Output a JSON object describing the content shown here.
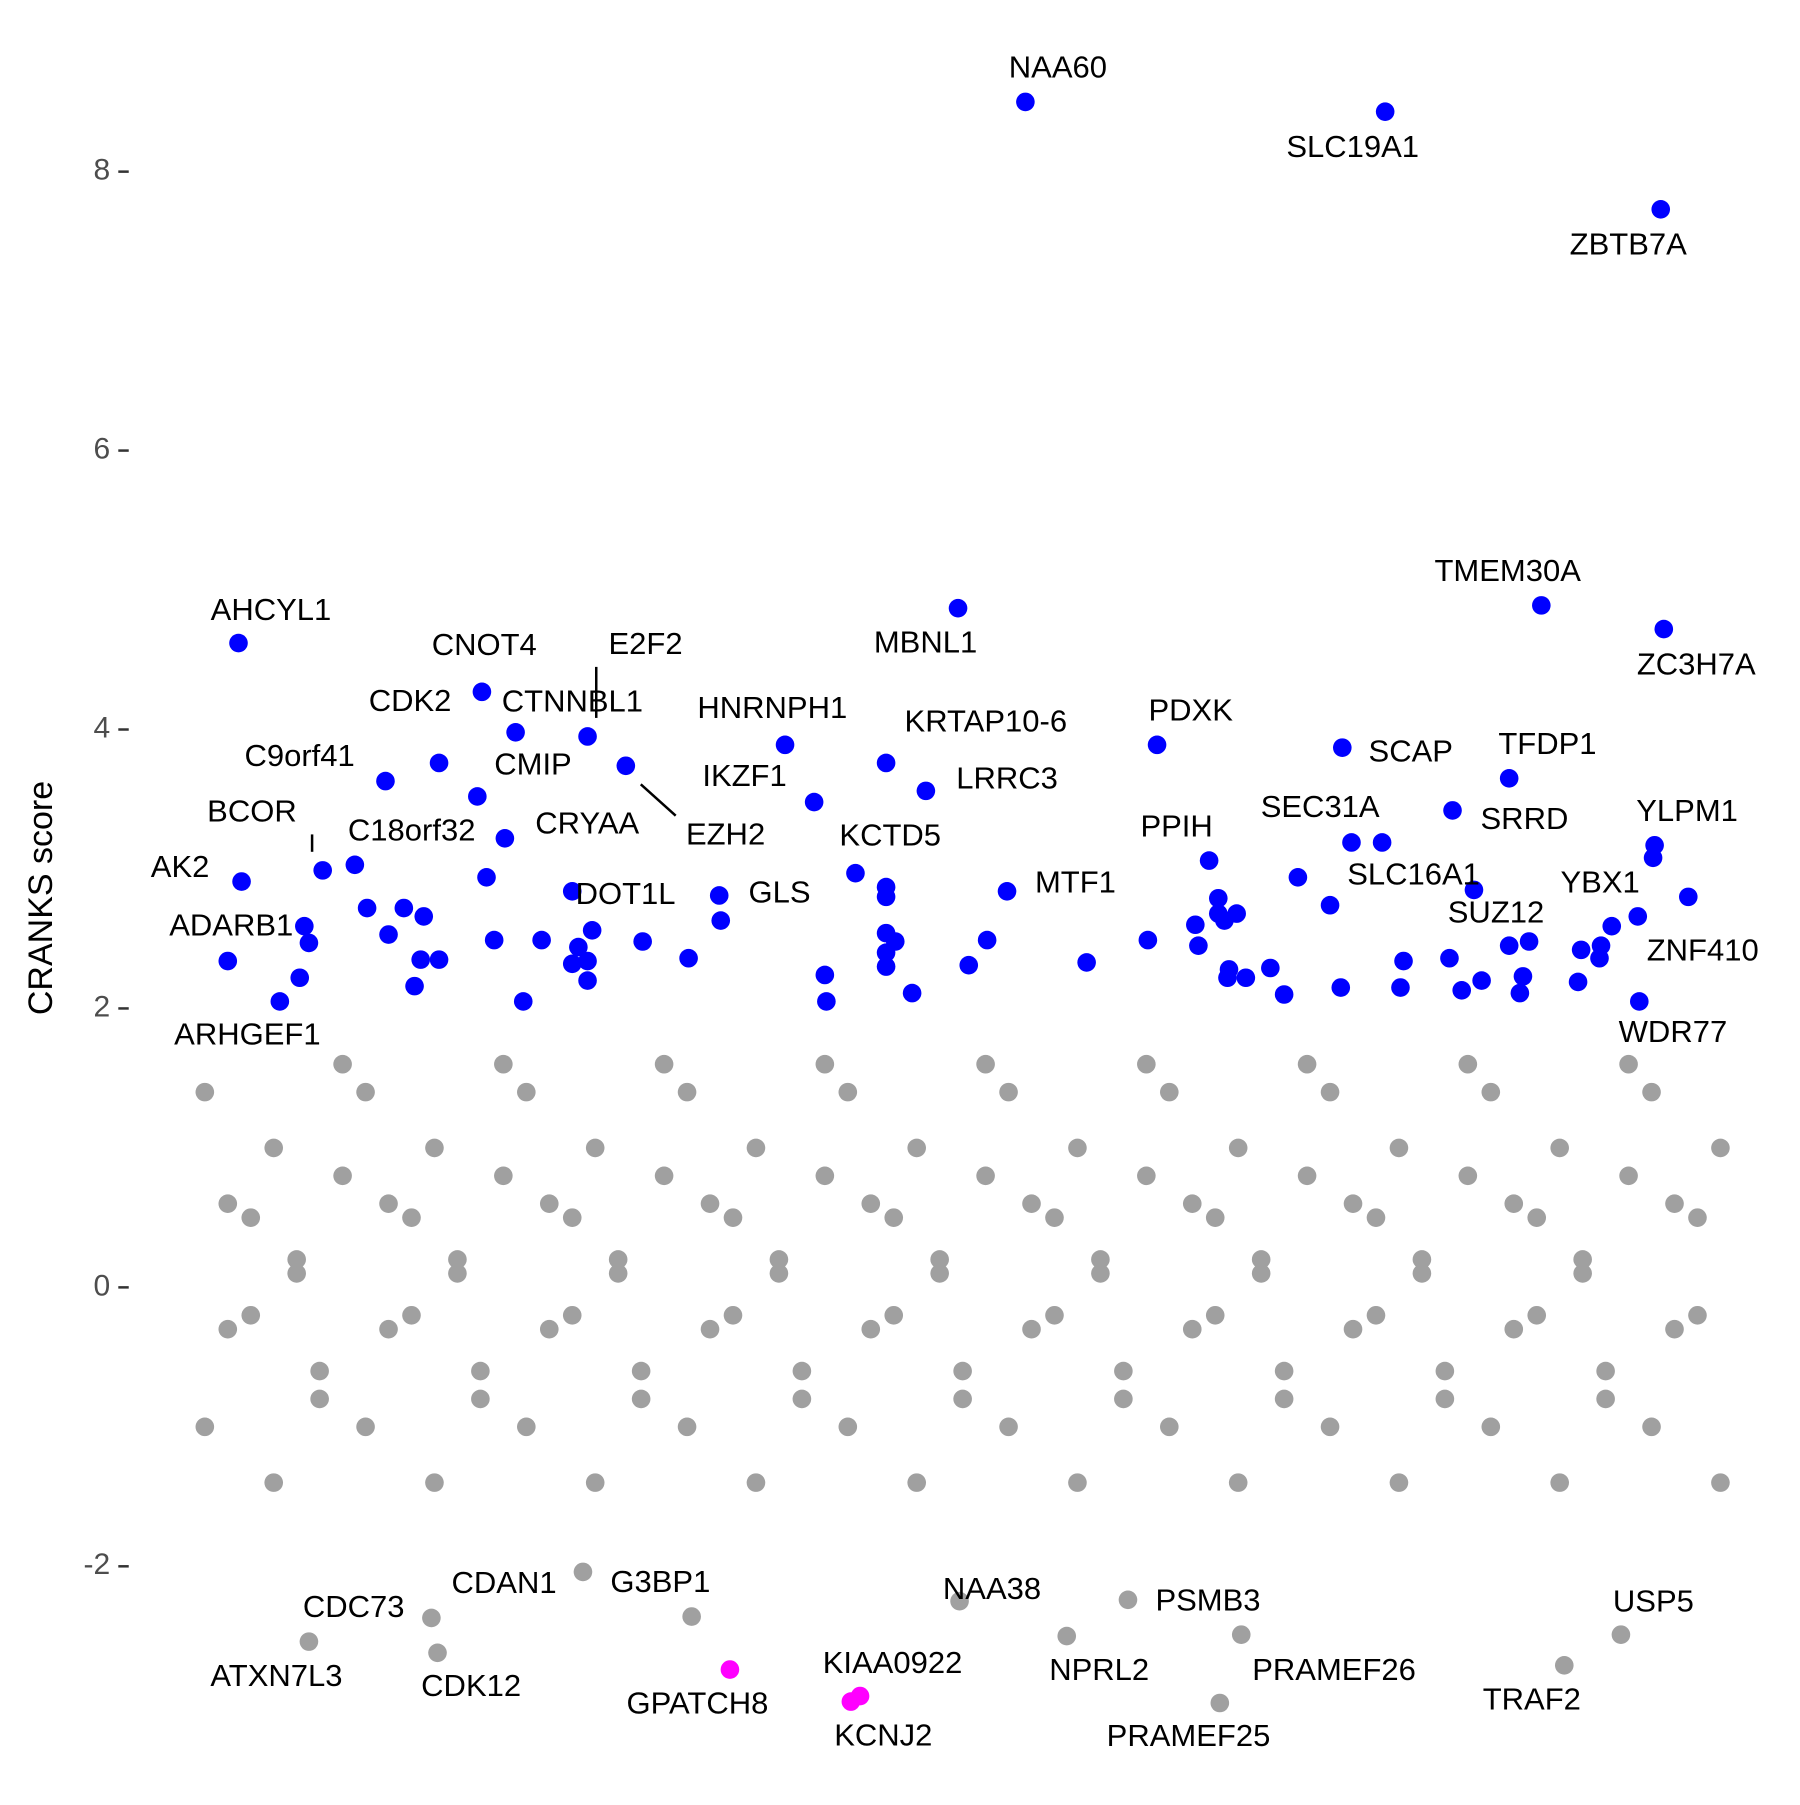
{
  "chart_data": {
    "type": "scatter",
    "ylabel": "CRANKS score",
    "xlim": [
      0,
      100
    ],
    "ylim": [
      -3.15,
      8.75
    ],
    "yticks": [
      -2,
      0,
      2,
      4,
      6,
      8
    ],
    "series": [
      {
        "color": "#a0a0a0",
        "x": [
          0.5,
          2,
          3.5,
          5,
          6.5,
          8,
          9.5,
          11,
          12.5,
          14,
          15.5,
          17,
          18.5,
          20,
          21.5,
          23,
          24.5,
          26,
          27.5,
          29,
          30.5,
          32,
          33.5,
          35,
          36.5,
          38,
          39.5,
          41,
          42.5,
          44,
          45.5,
          47,
          48.5,
          50,
          51.5,
          53,
          54.5,
          56,
          57.5,
          59,
          60.5,
          62,
          63.5,
          65,
          66.5,
          68,
          69.5,
          71,
          72.5,
          74,
          75.5,
          77,
          78.5,
          80,
          81.5,
          83,
          84.5,
          86,
          87.5,
          89,
          90.5,
          92,
          93.5,
          95,
          96.5,
          98,
          99.5,
          0.5,
          2,
          3.5,
          5,
          6.5,
          8,
          9.5,
          11,
          12.5,
          14,
          15.5,
          17,
          18.5,
          20,
          21.5,
          23,
          24.5,
          26,
          27.5,
          29,
          30.5,
          32,
          33.5,
          35,
          36.5,
          38,
          39.5,
          41,
          42.5,
          44,
          45.5,
          47,
          48.5,
          50,
          51.5,
          53,
          54.5,
          56,
          57.5,
          59,
          60.5,
          62,
          63.5,
          65,
          66.5,
          68,
          69.5,
          71,
          72.5,
          74,
          75.5,
          77,
          78.5,
          80,
          81.5,
          83,
          84.5,
          86,
          87.5,
          89,
          90.5,
          92,
          93.5,
          95,
          96.5,
          98,
          99.5
        ],
        "values": [
          1.4,
          0.6,
          -0.2,
          1.0,
          0.2,
          -0.6,
          1.6,
          1.4,
          0.6,
          -0.2,
          1.0,
          0.2,
          -0.6,
          1.6,
          1.4,
          0.6,
          -0.2,
          1.0,
          0.2,
          -0.6,
          1.6,
          1.4,
          0.6,
          -0.2,
          1.0,
          0.2,
          -0.6,
          1.6,
          1.4,
          0.6,
          -0.2,
          1.0,
          0.2,
          -0.6,
          1.6,
          1.4,
          0.6,
          -0.2,
          1.0,
          0.2,
          -0.6,
          1.6,
          1.4,
          0.6,
          -0.2,
          1.0,
          0.2,
          -0.6,
          1.6,
          1.4,
          0.6,
          -0.2,
          1.0,
          0.2,
          -0.6,
          1.6,
          1.4,
          0.6,
          -0.2,
          1.0,
          0.2,
          -0.6,
          1.6,
          1.4,
          0.6,
          -0.2,
          1.0,
          -1.0,
          -0.3,
          0.5,
          -1.4,
          0.1,
          -0.8,
          0.8,
          -1.0,
          -0.3,
          0.5,
          -1.4,
          0.1,
          -0.8,
          0.8,
          -1.0,
          -0.3,
          0.5,
          -1.4,
          0.1,
          -0.8,
          0.8,
          -1.0,
          -0.3,
          0.5,
          -1.4,
          0.1,
          -0.8,
          0.8,
          -1.0,
          -0.3,
          0.5,
          -1.4,
          0.1,
          -0.8,
          0.8,
          -1.0,
          -0.3,
          0.5,
          -1.4,
          0.1,
          -0.8,
          0.8,
          -1.0,
          -0.3,
          0.5,
          -1.4,
          0.1,
          -0.8,
          0.8,
          -1.0,
          -0.3,
          0.5,
          -1.4,
          0.1,
          -0.8,
          0.8,
          -1.0,
          -0.3,
          0.5,
          -1.4,
          0.1,
          -0.8,
          0.8,
          -1.0,
          -0.3,
          0.5,
          -1.4
        ]
      },
      {
        "color": "#a0a0a0",
        "labels": [
          "ATXN7L3",
          "CDC73",
          "CDK12",
          "CDAN1",
          "G3BP1",
          "NAA38",
          "NPRL2",
          "PSMB3",
          "PRAMEF26",
          "PRAMEF25",
          "TRAF2",
          "USP5"
        ],
        "x": [
          7.3,
          15.3,
          15.7,
          25.2,
          32.3,
          49.8,
          56.8,
          60.8,
          68.2,
          66.8,
          89.3,
          93.0
        ],
        "values": [
          -2.54,
          -2.37,
          -2.62,
          -2.04,
          -2.36,
          -2.25,
          -2.5,
          -2.24,
          -2.49,
          -2.98,
          -2.71,
          -2.49
        ]
      },
      {
        "color": "#0000ff",
        "x": [
          2.0,
          7.3,
          6.7,
          11.1,
          12.5,
          13.5,
          14.8,
          14.6,
          14.2,
          15.8,
          18.9,
          19.4,
          21.3,
          22.5,
          24.9,
          24.5,
          25.5,
          25.5,
          25.8,
          29.1,
          32.1,
          34.2,
          41.0,
          41.1,
          45.0,
          45.0,
          45.0,
          45.6,
          45.0,
          45.0,
          46.7,
          50.4,
          51.6,
          58.1,
          62.1,
          65.2,
          65.4,
          66.7,
          66.7,
          67.1,
          67.9,
          67.4,
          67.3,
          68.5,
          70.1,
          71.0,
          71.9,
          74.7,
          77.4,
          78.8,
          78.6,
          81.8,
          82.6,
          83.9,
          85.7,
          86.6,
          86.4,
          87.0,
          90.2,
          90.4,
          91.6,
          91.7,
          95.1,
          97.4
        ],
        "values": [
          2.34,
          2.47,
          2.22,
          2.72,
          2.53,
          2.72,
          2.66,
          2.35,
          2.16,
          2.35,
          2.94,
          2.49,
          2.05,
          2.49,
          2.44,
          2.32,
          2.34,
          2.2,
          2.56,
          2.48,
          2.36,
          2.63,
          2.24,
          2.05,
          2.87,
          2.8,
          2.54,
          2.48,
          2.4,
          2.3,
          2.11,
          2.31,
          2.49,
          2.33,
          2.49,
          2.6,
          2.45,
          2.79,
          2.68,
          2.63,
          2.68,
          2.28,
          2.22,
          2.22,
          2.29,
          2.1,
          2.94,
          2.15,
          3.19,
          2.34,
          2.15,
          2.36,
          2.13,
          2.2,
          2.45,
          2.23,
          2.11,
          2.48,
          2.19,
          2.42,
          2.36,
          2.45,
          3.08,
          2.8
        ]
      },
      {
        "color": "#0000ff",
        "labels": [
          "NAA60",
          "SLC19A1",
          "ZBTB7A",
          "TMEM30A",
          "ZC3H7A",
          "MBNL1",
          "AHCYL1",
          "CNOT4",
          "CTNNBL1",
          "E2F2",
          "CDK2",
          "C9orf41",
          "CMIP",
          "EZH2",
          "CRYAA",
          "HNRNPH1",
          "IKZF1",
          "KRTAP10-6",
          "LRRC3",
          "KCTD5",
          "PDXK",
          "SCAP",
          "TFDP1",
          "SRRD",
          "SEC31A",
          "YLPM1",
          "PPIH",
          "SLC16A1",
          "SUZ12",
          "YBX1",
          "ZNF410",
          "WDR77",
          "MTF1",
          "BCOR",
          "C18orf32",
          "AK2",
          "ADARB1",
          "ARHGEF1",
          "DOT1L",
          "GLS"
        ],
        "x": [
          54.1,
          77.6,
          95.6,
          87.8,
          95.8,
          49.7,
          2.7,
          18.6,
          20.8,
          25.5,
          15.8,
          12.3,
          18.3,
          28.0,
          20.1,
          38.4,
          40.3,
          45.0,
          47.6,
          43.0,
          62.7,
          74.8,
          85.7,
          82.0,
          75.4,
          95.2,
          66.1,
          74.0,
          83.4,
          92.4,
          94.1,
          94.2,
          52.9,
          8.2,
          10.3,
          2.9,
          7.0,
          5.4,
          24.5,
          34.1
        ],
        "values": [
          8.5,
          8.43,
          7.73,
          4.89,
          4.72,
          4.87,
          4.62,
          4.27,
          3.98,
          3.95,
          3.76,
          3.63,
          3.52,
          3.74,
          3.22,
          3.89,
          3.48,
          3.76,
          3.56,
          2.97,
          3.89,
          3.87,
          3.65,
          3.42,
          3.19,
          3.17,
          3.06,
          2.74,
          2.85,
          2.59,
          2.66,
          2.05,
          2.84,
          2.99,
          3.03,
          2.91,
          2.59,
          2.05,
          2.84,
          2.81
        ]
      },
      {
        "color": "#ff00ff",
        "labels": [
          "GPATCH8",
          "KIAA0922",
          "KCNJ2"
        ],
        "x": [
          34.8,
          43.3,
          42.7
        ],
        "values": [
          -2.74,
          -2.93,
          -2.97
        ]
      }
    ]
  }
}
